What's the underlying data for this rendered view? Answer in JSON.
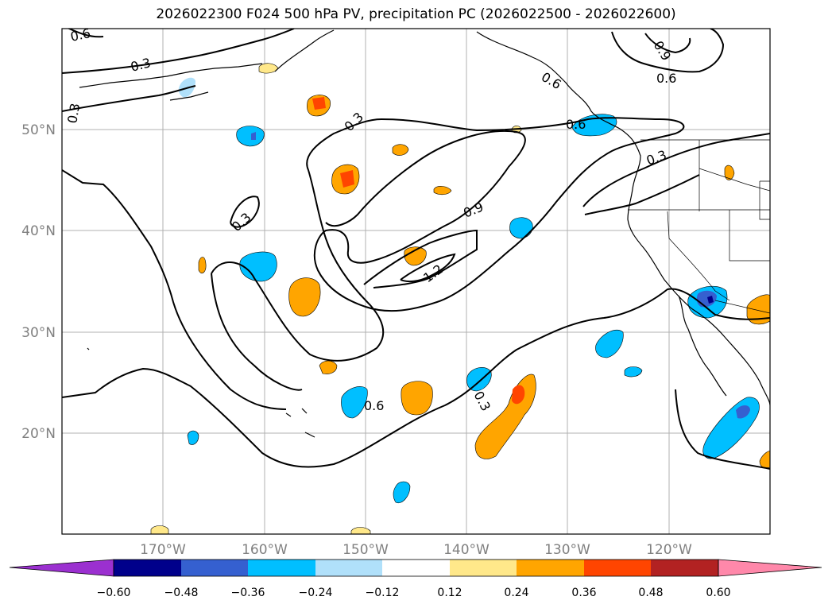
{
  "title": "2026022300 F024 500 hPa PV, precipitation PC (2026022500 - 2026022600)",
  "map": {
    "projection": "PlateCarree",
    "extent_lon": [
      -180,
      -110
    ],
    "extent_lat": [
      10,
      60
    ],
    "gridlines": true,
    "lat_ticks": [
      "20°N",
      "30°N",
      "40°N",
      "50°N"
    ],
    "lon_ticks": [
      "170°W",
      "160°W",
      "150°W",
      "140°W",
      "130°W",
      "120°W"
    ],
    "contour_labels": [
      "0.6",
      "0.3",
      "0.3",
      "0.3",
      "0.6",
      "0.9",
      "0.6",
      "0.3",
      "0.3",
      "0.9",
      "1.2",
      "0.6",
      "0.3",
      "0.6"
    ],
    "colors": {
      "grid": "#b0b0b0",
      "contour": "#000000",
      "coast": "#000000"
    }
  },
  "colorbar": {
    "levels": [
      "−0.60",
      "−0.48",
      "−0.36",
      "−0.24",
      "−0.12",
      "0.12",
      "0.24",
      "0.36",
      "0.48",
      "0.60"
    ],
    "colors": [
      "#9b30d0",
      "#00008b",
      "#3560d0",
      "#00bfff",
      "#b0e0fa",
      "#ffffff",
      "#ffe88a",
      "#ffa500",
      "#ff4500",
      "#b22222",
      "#ff88aa"
    ],
    "extend": "both"
  }
}
